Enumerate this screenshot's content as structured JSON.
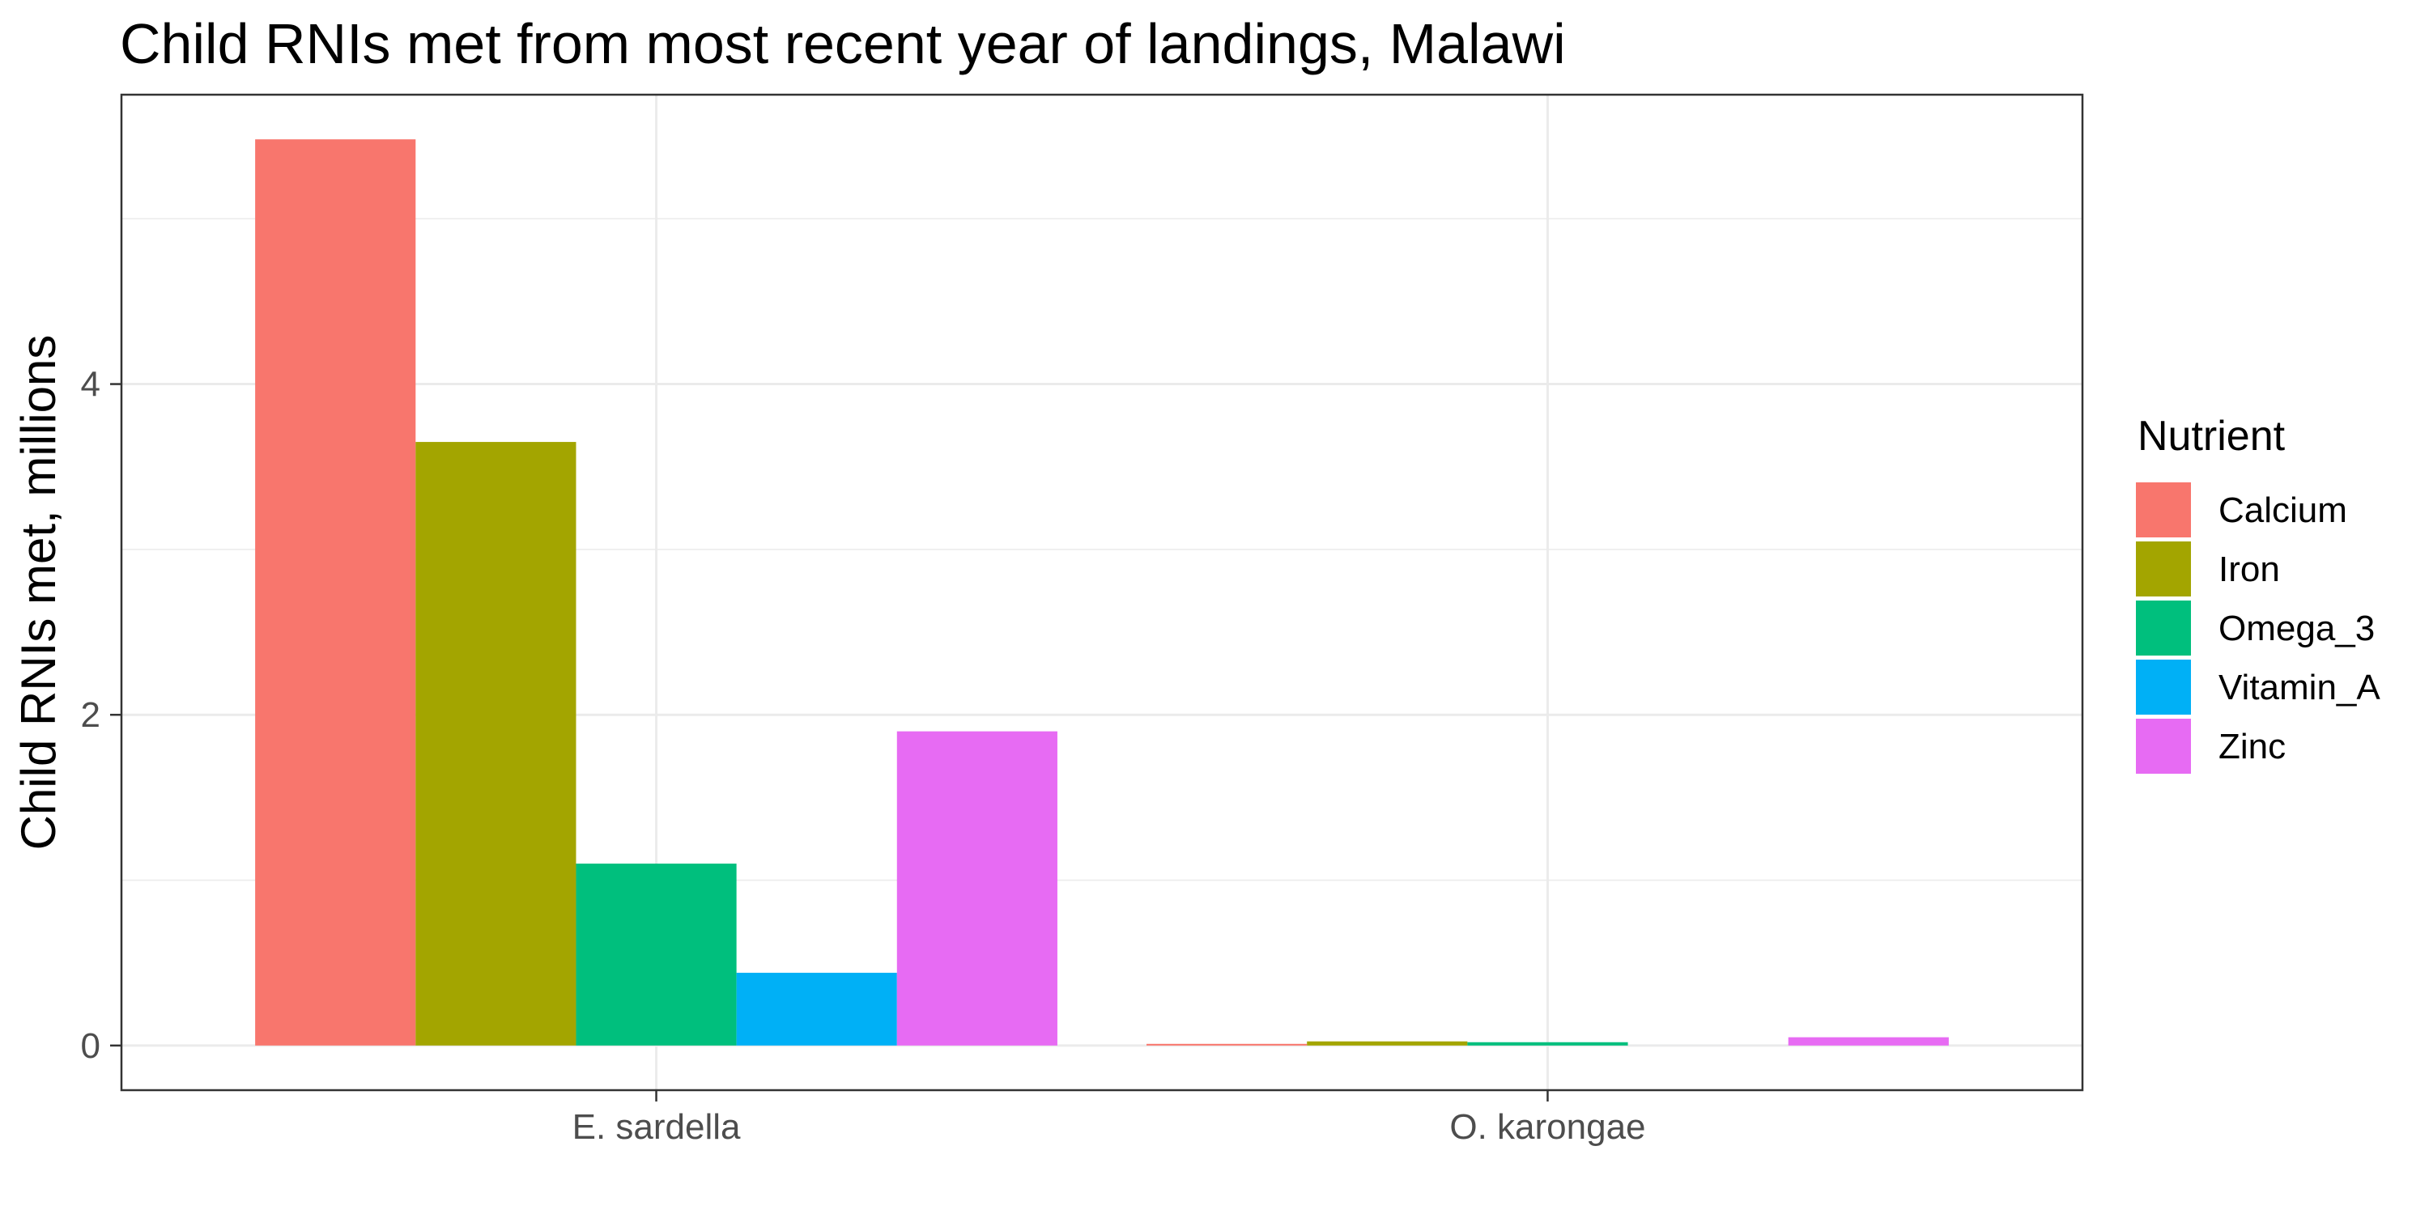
{
  "chart_data": {
    "type": "bar",
    "title": "Child RNIs met from most recent year of landings, Malawi",
    "xlabel": "",
    "ylabel": "Child RNIs met, millions",
    "categories": [
      "E. sardella",
      "O. karongae"
    ],
    "series": [
      {
        "name": "Calcium",
        "color": "#F8766D",
        "values": [
          5.48,
          0.01
        ]
      },
      {
        "name": "Iron",
        "color": "#A3A500",
        "values": [
          3.65,
          0.025
        ]
      },
      {
        "name": "Omega_3",
        "color": "#00BF7D",
        "values": [
          1.1,
          0.02
        ]
      },
      {
        "name": "Vitamin_A",
        "color": "#00B0F6",
        "values": [
          0.44,
          0.0
        ]
      },
      {
        "name": "Zinc",
        "color": "#E76BF3",
        "values": [
          1.9,
          0.05
        ]
      }
    ],
    "ylim": [
      -0.27,
      5.75
    ],
    "yticks": [
      0,
      2,
      4
    ],
    "grid": true,
    "legend": {
      "title": "Nutrient",
      "placement": "right"
    }
  }
}
